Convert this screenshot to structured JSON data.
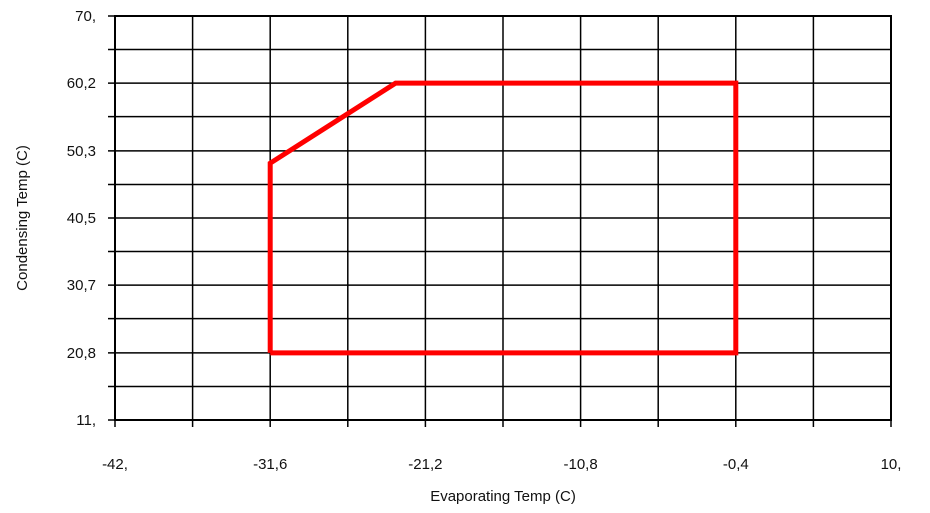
{
  "chart_data": {
    "type": "line",
    "title": "",
    "xlabel": "Evaporating Temp (C)",
    "ylabel": "Condensing Temp (C)",
    "xlim": [
      -42,
      10
    ],
    "ylim": [
      11,
      70
    ],
    "x_ticks": [
      -42,
      -36.8,
      -31.6,
      -26.4,
      -21.2,
      -16,
      -10.8,
      -5.6,
      -0.4,
      4.8,
      10
    ],
    "x_tick_labels": [
      "-42,",
      "",
      "-31,6",
      "",
      "-21,2",
      "",
      "-10,8",
      "",
      "-0,4",
      "",
      "10,"
    ],
    "y_ticks": [
      11,
      15.9,
      20.8,
      25.8,
      30.7,
      35.6,
      40.5,
      45.4,
      50.3,
      55.3,
      60.2,
      65.1,
      70
    ],
    "y_tick_labels": [
      "11,",
      "",
      "20,8",
      "",
      "30,7",
      "",
      "40,5",
      "",
      "50,3",
      "",
      "60,2",
      "",
      "70,"
    ],
    "grid": true,
    "legend": "none",
    "series": [
      {
        "x": [
          -31.6,
          -31.6,
          -23.2,
          -0.4,
          -0.4,
          -31.6
        ],
        "y": [
          20.8,
          48.5,
          60.2,
          60.2,
          20.8,
          20.8
        ]
      }
    ]
  },
  "colors": {
    "envelope": "#ff0000",
    "grid": "#000000",
    "text": "#111111"
  }
}
